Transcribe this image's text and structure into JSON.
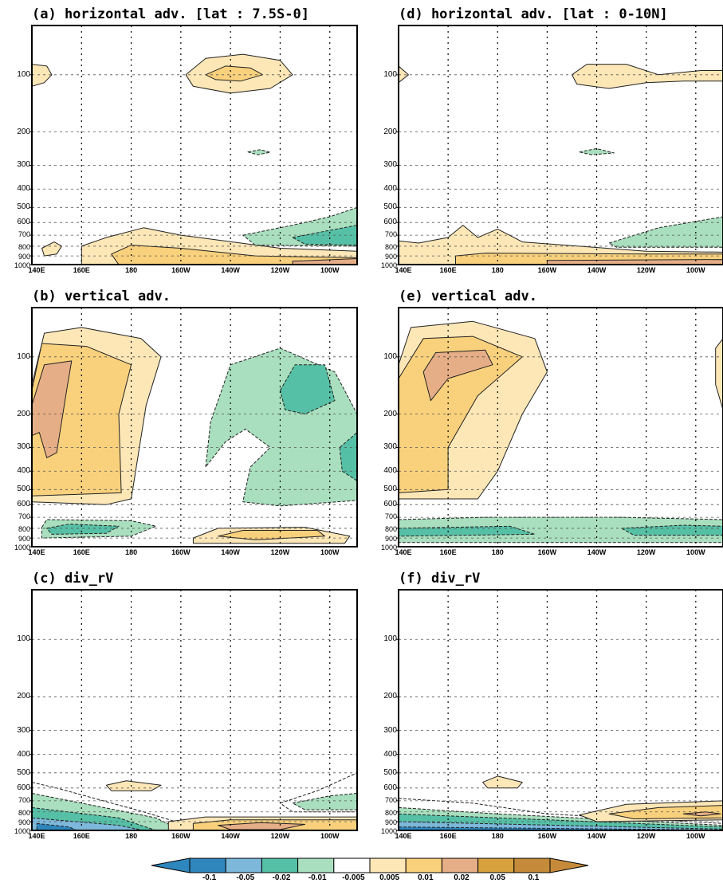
{
  "colors": {
    "neg_0_1": "#2f86bd",
    "neg_0_05": "#7db8da",
    "neg_0_02": "#56c0a6",
    "neg_0_01": "#a9dfbe",
    "neutral": "#ffffff",
    "pos_0_005": "#fde7b7",
    "pos_0_01": "#f9d17c",
    "pos_0_02": "#e6ae86",
    "pos_0_05": "#d7a23e",
    "pos_0_1": "#c58b3a"
  },
  "chart_data": [
    {
      "id": "a",
      "type": "heatmap",
      "title": "(a) horizontal adv. [lat : 7.5S-0]",
      "x_ticks": [
        "140E",
        "160E",
        "180",
        "160W",
        "140W",
        "120W",
        "100W"
      ],
      "y_ticks": [
        "100",
        "200",
        "300",
        "400",
        "500",
        "600",
        "700",
        "800",
        "900",
        "1000"
      ],
      "xlim": [
        "140E",
        "90W"
      ],
      "ylim": [
        1000,
        50
      ],
      "y_scale": "log",
      "features": [
        {
          "level": 0.005,
          "lon": 140,
          "p": 100,
          "desc": "small positive at west edge"
        },
        {
          "level": 0.01,
          "lon": 220,
          "p": 100,
          "desc": "upper positive cell"
        },
        {
          "level": -0.01,
          "lon": 232,
          "p": 250
        },
        {
          "level": 0.01,
          "lon": 190,
          "p": 850,
          "desc": "low-level positive"
        },
        {
          "level": -0.02,
          "lon": 260,
          "p": 700,
          "desc": "low-level negative east"
        },
        {
          "level": 0.02,
          "lon": 260,
          "p": 950
        }
      ]
    },
    {
      "id": "b",
      "type": "heatmap",
      "title": "(b) vertical adv.",
      "x_ticks": [
        "140E",
        "160E",
        "180",
        "160W",
        "140W",
        "120W",
        "100W"
      ],
      "y_ticks": [
        "100",
        "200",
        "300",
        "400",
        "500",
        "600",
        "700",
        "800",
        "900",
        "1000"
      ],
      "features": [
        {
          "level": 0.02,
          "lon": 147,
          "p": 200,
          "desc": "strong positive west"
        },
        {
          "level": -0.02,
          "lon": 240,
          "p": 120
        },
        {
          "level": -0.01,
          "lon": 240,
          "p": 300,
          "desc": "negative east"
        },
        {
          "level": -0.02,
          "lon": 155,
          "p": 800
        },
        {
          "level": 0.01,
          "lon": 220,
          "p": 850
        }
      ]
    },
    {
      "id": "c",
      "type": "heatmap",
      "title": "(c) div_rV",
      "x_ticks": [
        "140E",
        "160E",
        "180",
        "160W",
        "140W",
        "120W",
        "100W"
      ],
      "y_ticks": [
        "100",
        "200",
        "300",
        "400",
        "500",
        "600",
        "700",
        "800",
        "900",
        "1000"
      ],
      "features": [
        {
          "level": -0.05,
          "lon": 155,
          "p": 900,
          "desc": "negative near surface west"
        },
        {
          "level": 0.005,
          "lon": 182,
          "p": 600
        },
        {
          "level": 0.02,
          "lon": 230,
          "p": 950
        },
        {
          "level": -0.01,
          "lon": 255,
          "p": 700
        }
      ]
    },
    {
      "id": "d",
      "type": "heatmap",
      "title": "(d) horizontal adv. [lat : 0-10N]",
      "x_ticks": [
        "140E",
        "160E",
        "180",
        "160W",
        "140W",
        "120W",
        "100W"
      ],
      "y_ticks": [
        "100",
        "200",
        "300",
        "400",
        "500",
        "600",
        "700",
        "800",
        "900",
        "1000"
      ],
      "features": [
        {
          "level": 0.005,
          "lon": 235,
          "p": 100,
          "desc": "upper positive band"
        },
        {
          "level": -0.01,
          "lon": 218,
          "p": 250
        },
        {
          "level": -0.01,
          "lon": 255,
          "p": 650
        },
        {
          "level": 0.02,
          "lon": 250,
          "p": 950
        }
      ]
    },
    {
      "id": "e",
      "type": "heatmap",
      "title": "(e) vertical adv.",
      "x_ticks": [
        "140E",
        "160E",
        "180",
        "160W",
        "140W",
        "120W",
        "100W"
      ],
      "y_ticks": [
        "100",
        "200",
        "300",
        "400",
        "500",
        "600",
        "700",
        "800",
        "900",
        "1000"
      ],
      "features": [
        {
          "level": 0.02,
          "lon": 160,
          "p": 120,
          "desc": "strong positive upper west"
        },
        {
          "level": 0.01,
          "lon": 165,
          "p": 250
        },
        {
          "level": -0.02,
          "lon": 200,
          "p": 800,
          "desc": "low-level negative band"
        }
      ]
    },
    {
      "id": "f",
      "type": "heatmap",
      "title": "(f) div_rV",
      "x_ticks": [
        "140E",
        "160E",
        "180",
        "160W",
        "140W",
        "120W",
        "100W"
      ],
      "y_ticks": [
        "100",
        "200",
        "300",
        "400",
        "500",
        "600",
        "700",
        "800",
        "900",
        "1000"
      ],
      "features": [
        {
          "level": -0.05,
          "lon": 160,
          "p": 900,
          "desc": "near-surface negative"
        },
        {
          "level": 0.005,
          "lon": 180,
          "p": 550
        },
        {
          "level": 0.02,
          "lon": 255,
          "p": 800
        }
      ]
    }
  ],
  "colorbar": {
    "labels": [
      "-0.1",
      "-0.05",
      "-0.02",
      "-0.01",
      "-0.005",
      "0.005",
      "0.01",
      "0.02",
      "0.05",
      "0.1"
    ]
  }
}
